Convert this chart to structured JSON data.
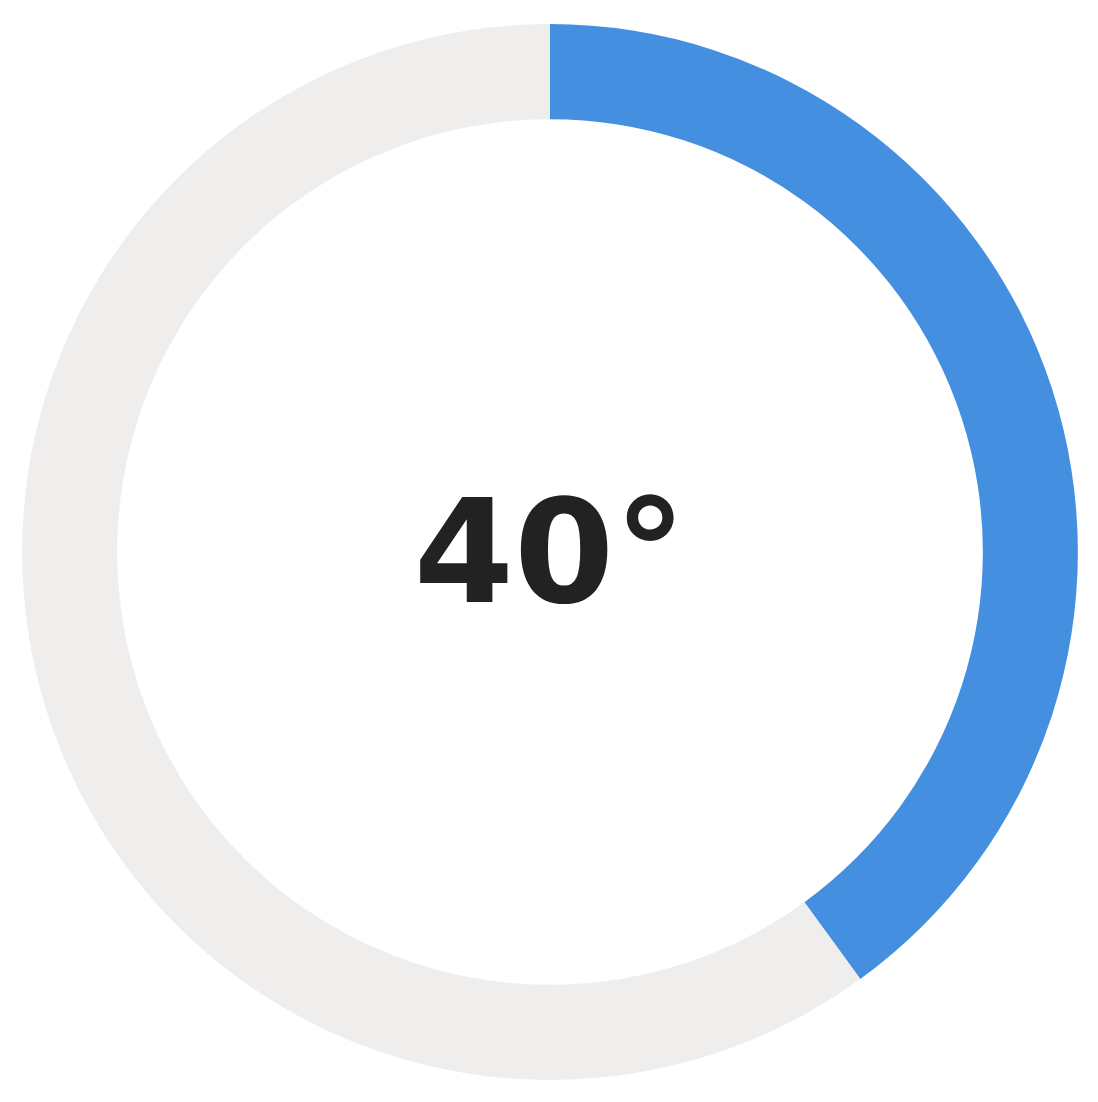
{
  "chart_data": {
    "type": "donut",
    "categories": [
      null,
      null
    ],
    "values": [
      40,
      60
    ],
    "colors": [
      "#448fe0",
      "#f0eded"
    ],
    "annotations": [
      "40°"
    ]
  }
}
